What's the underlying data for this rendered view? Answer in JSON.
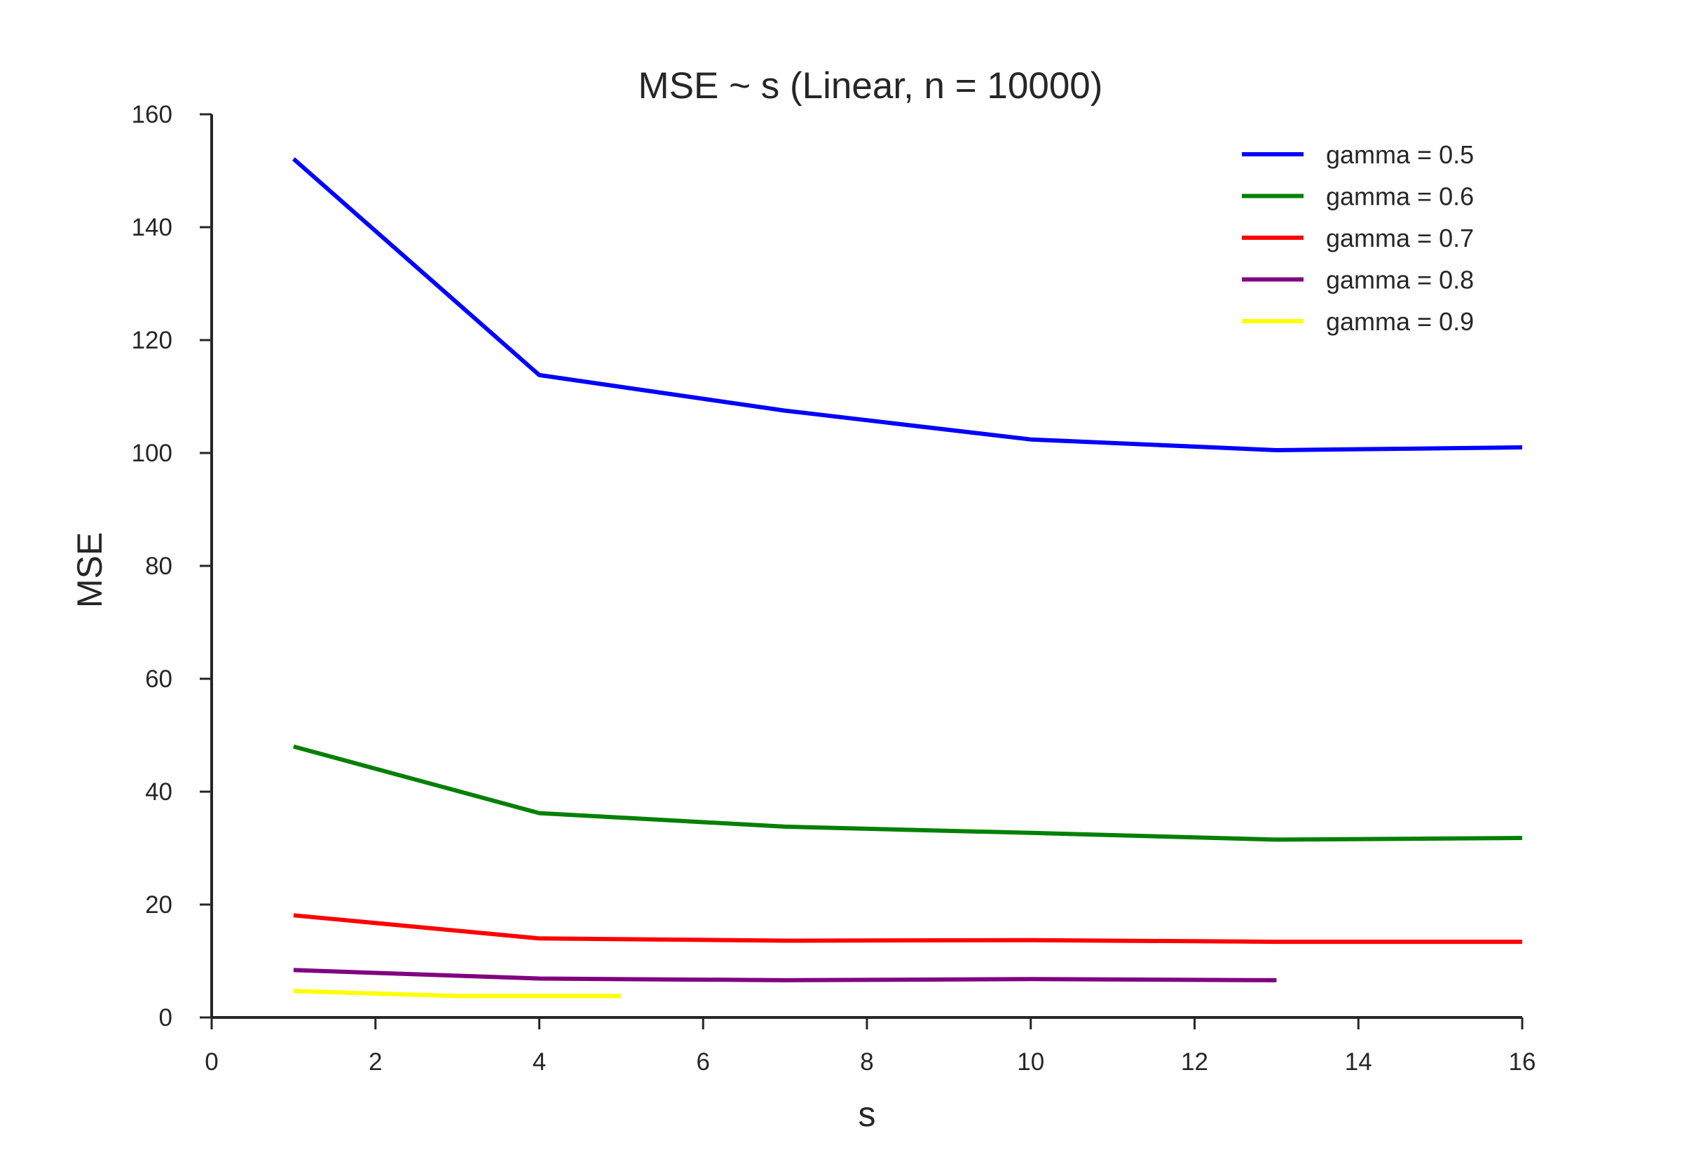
{
  "chart_data": {
    "type": "line",
    "title": "MSE ~ s (Linear, n = 10000)",
    "xlabel": "s",
    "ylabel": "MSE",
    "xlim": [
      0,
      16
    ],
    "ylim": [
      0,
      160
    ],
    "xticks": [
      0,
      2,
      4,
      6,
      8,
      10,
      12,
      14,
      16
    ],
    "yticks": [
      0,
      20,
      40,
      60,
      80,
      100,
      120,
      140,
      160
    ],
    "grid": false,
    "legend_position": "top-right",
    "series": [
      {
        "name": "gamma = 0.5",
        "color": "#0000ff",
        "x": [
          1,
          4,
          7,
          10,
          13,
          16
        ],
        "y": [
          152.1,
          113.8,
          107.5,
          102.4,
          100.5,
          101.0
        ]
      },
      {
        "name": "gamma = 0.6",
        "color": "#008000",
        "x": [
          1,
          4,
          7,
          10,
          13,
          16
        ],
        "y": [
          48.0,
          36.2,
          33.8,
          32.7,
          31.5,
          31.8
        ]
      },
      {
        "name": "gamma = 0.7",
        "color": "#ff0000",
        "x": [
          1,
          4,
          7,
          10,
          13,
          16
        ],
        "y": [
          18.1,
          14.0,
          13.6,
          13.7,
          13.4,
          13.4
        ]
      },
      {
        "name": "gamma = 0.8",
        "color": "#800080",
        "x": [
          1,
          4,
          7,
          10,
          13
        ],
        "y": [
          8.4,
          6.9,
          6.6,
          6.8,
          6.6
        ]
      },
      {
        "name": "gamma = 0.9",
        "color": "#ffff00",
        "x": [
          1,
          3,
          5
        ],
        "y": [
          4.7,
          3.8,
          3.8
        ]
      }
    ]
  }
}
